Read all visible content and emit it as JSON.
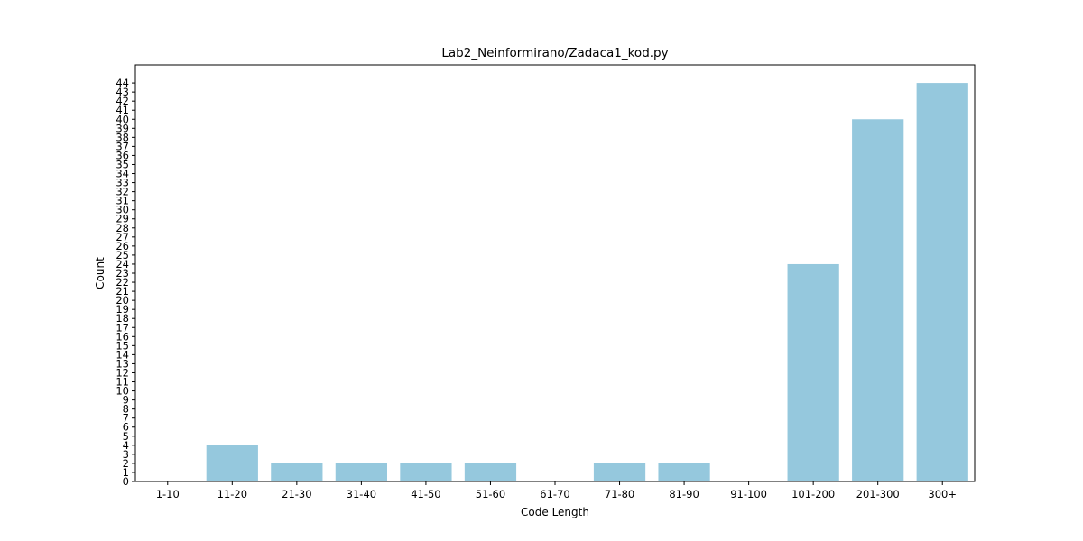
{
  "chart_data": {
    "type": "bar",
    "title": "Lab2_Neinformirano/Zadaca1_kod.py",
    "xlabel": "Code Length",
    "ylabel": "Count",
    "categories": [
      "1-10",
      "11-20",
      "21-30",
      "31-40",
      "41-50",
      "51-60",
      "61-70",
      "71-80",
      "81-90",
      "91-100",
      "101-200",
      "201-300",
      "300+"
    ],
    "values": [
      0,
      4,
      2,
      2,
      2,
      2,
      0,
      2,
      2,
      0,
      24,
      40,
      44
    ],
    "ylim": [
      0,
      46
    ],
    "yticks": [
      0,
      1,
      2,
      3,
      4,
      5,
      6,
      7,
      8,
      9,
      10,
      11,
      12,
      13,
      14,
      15,
      16,
      17,
      18,
      19,
      20,
      21,
      22,
      23,
      24,
      25,
      26,
      27,
      28,
      29,
      30,
      31,
      32,
      33,
      34,
      35,
      36,
      37,
      38,
      39,
      40,
      41,
      42,
      43,
      44
    ],
    "grid": false,
    "bar_color": "#95c8dd"
  }
}
